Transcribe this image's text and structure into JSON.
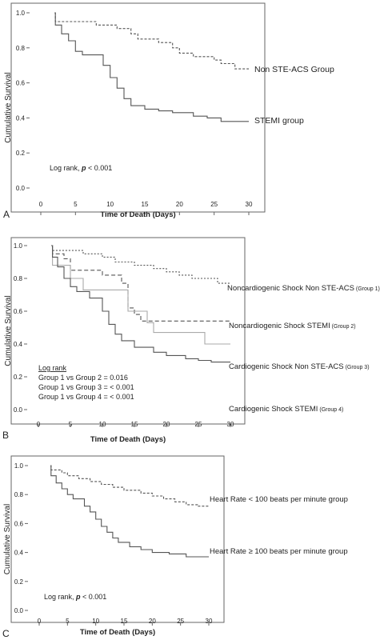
{
  "chart_data": [
    {
      "panel_label": "A",
      "type": "line",
      "step": true,
      "ylabel": "Cumulative Survival",
      "xlabel": "Time of Death (Days)",
      "xlim": [
        0,
        30
      ],
      "ylim": [
        0,
        1
      ],
      "x_ticks": [
        "0",
        "5",
        "10",
        "15",
        "20",
        "25",
        "30"
      ],
      "y_ticks": [
        "0.0",
        "0.2",
        "0.4",
        "0.6",
        "0.8",
        "1.0"
      ],
      "grid": false,
      "annotation_prefix": "Log rank,",
      "annotation_p": "p",
      "annotation_value": "< 0.001",
      "series": [
        {
          "name": "Non STE-ACS Group",
          "color": "#555555",
          "dash": "3,2",
          "points": [
            [
              2,
              1.0
            ],
            [
              2.1,
              0.95
            ],
            [
              7,
              0.95
            ],
            [
              8,
              0.93
            ],
            [
              11,
              0.91
            ],
            [
              13,
              0.88
            ],
            [
              14,
              0.85
            ],
            [
              17,
              0.83
            ],
            [
              19,
              0.8
            ],
            [
              20,
              0.77
            ],
            [
              22,
              0.75
            ],
            [
              25,
              0.73
            ],
            [
              26,
              0.71
            ],
            [
              28,
              0.68
            ],
            [
              30,
              0.68
            ]
          ]
        },
        {
          "name": "STEMI group",
          "color": "#555555",
          "dash": "",
          "points": [
            [
              2,
              1.0
            ],
            [
              2.1,
              0.93
            ],
            [
              3,
              0.88
            ],
            [
              4,
              0.84
            ],
            [
              5,
              0.78
            ],
            [
              6,
              0.76
            ],
            [
              9,
              0.7
            ],
            [
              10,
              0.63
            ],
            [
              11,
              0.57
            ],
            [
              12,
              0.51
            ],
            [
              13,
              0.47
            ],
            [
              15,
              0.45
            ],
            [
              17,
              0.44
            ],
            [
              19,
              0.43
            ],
            [
              22,
              0.41
            ],
            [
              24,
              0.4
            ],
            [
              26,
              0.38
            ],
            [
              30,
              0.38
            ]
          ]
        }
      ]
    },
    {
      "panel_label": "B",
      "type": "line",
      "step": true,
      "ylabel": "Cumulative Survival",
      "xlabel": "Time of Death (Days)",
      "xlim": [
        0,
        30
      ],
      "ylim": [
        0,
        1
      ],
      "x_ticks": [
        "0",
        "5",
        "10",
        "15",
        "20",
        "25",
        "30"
      ],
      "y_ticks": [
        "0.0",
        "0.2",
        "0.4",
        "0.6",
        "0.8",
        "1.0"
      ],
      "grid": false,
      "log_rank_title": "Log rank",
      "comparisons": [
        "Group 1 vs Group 2 = 0.016",
        "Group 1 vs Group 3 = < 0.001",
        "Group 1 vs Group 4 = < 0.001"
      ],
      "series": [
        {
          "name": "Noncardiogenic Shock Non STE-ACS",
          "group": "(Group 1)",
          "color": "#555555",
          "dash": "2,2",
          "points": [
            [
              2,
              1.0
            ],
            [
              2.2,
              0.97
            ],
            [
              6,
              0.97
            ],
            [
              7,
              0.95
            ],
            [
              10,
              0.93
            ],
            [
              12,
              0.9
            ],
            [
              15,
              0.88
            ],
            [
              18,
              0.86
            ],
            [
              20,
              0.84
            ],
            [
              22,
              0.82
            ],
            [
              24,
              0.8
            ],
            [
              28,
              0.77
            ],
            [
              30,
              0.77
            ]
          ]
        },
        {
          "name": "Noncardiogenic Shock STEMI",
          "group": "(Group 2)",
          "color": "#555555",
          "dash": "5,3",
          "points": [
            [
              2,
              1.0
            ],
            [
              2.2,
              0.95
            ],
            [
              4,
              0.92
            ],
            [
              5,
              0.85
            ],
            [
              9,
              0.85
            ],
            [
              10,
              0.82
            ],
            [
              13,
              0.77
            ],
            [
              14,
              0.62
            ],
            [
              15,
              0.58
            ],
            [
              16,
              0.54
            ],
            [
              30,
              0.54
            ]
          ]
        },
        {
          "name": "Cardiogenic Shock Non STE-ACS",
          "group": "(Group 3)",
          "color": "#aaaaaa",
          "dash": "",
          "points": [
            [
              2,
              1.0
            ],
            [
              2.2,
              0.88
            ],
            [
              5,
              0.8
            ],
            [
              7,
              0.73
            ],
            [
              13,
              0.73
            ],
            [
              14,
              0.6
            ],
            [
              17,
              0.53
            ],
            [
              18,
              0.47
            ],
            [
              25,
              0.47
            ],
            [
              26,
              0.4
            ],
            [
              30,
              0.4
            ]
          ]
        },
        {
          "name": "Cardiogenic Shock STEMI",
          "group": "(Group 4)",
          "color": "#555555",
          "dash": "",
          "points": [
            [
              2,
              1.0
            ],
            [
              2.2,
              0.93
            ],
            [
              3,
              0.87
            ],
            [
              4,
              0.8
            ],
            [
              5,
              0.75
            ],
            [
              6,
              0.72
            ],
            [
              8,
              0.68
            ],
            [
              10,
              0.6
            ],
            [
              11,
              0.52
            ],
            [
              12,
              0.46
            ],
            [
              13,
              0.42
            ],
            [
              15,
              0.38
            ],
            [
              18,
              0.35
            ],
            [
              20,
              0.33
            ],
            [
              23,
              0.31
            ],
            [
              25,
              0.3
            ],
            [
              27,
              0.29
            ],
            [
              30,
              0.29
            ]
          ]
        }
      ]
    },
    {
      "panel_label": "C",
      "type": "line",
      "step": true,
      "ylabel": "Cumulative Survival",
      "xlabel": "Time of Death (Days)",
      "xlim": [
        0,
        30
      ],
      "ylim": [
        0,
        1
      ],
      "x_ticks": [
        "0",
        "5",
        "10",
        "15",
        "20",
        "25",
        "30"
      ],
      "y_ticks": [
        "0.0",
        "0.2",
        "0.4",
        "0.6",
        "0.8",
        "1.0"
      ],
      "grid": false,
      "annotation_prefix": "Log rank,",
      "annotation_p": "p",
      "annotation_value": "< 0.001",
      "series": [
        {
          "name": "Heart Rate < 100 beats per minute  group",
          "color": "#555555",
          "dash": "3,2",
          "points": [
            [
              2,
              1.0
            ],
            [
              2.1,
              0.97
            ],
            [
              4,
              0.95
            ],
            [
              5,
              0.93
            ],
            [
              7,
              0.91
            ],
            [
              9,
              0.89
            ],
            [
              11,
              0.87
            ],
            [
              13,
              0.85
            ],
            [
              15,
              0.83
            ],
            [
              18,
              0.81
            ],
            [
              20,
              0.79
            ],
            [
              22,
              0.77
            ],
            [
              24,
              0.75
            ],
            [
              26,
              0.73
            ],
            [
              28,
              0.72
            ],
            [
              30,
              0.72
            ]
          ]
        },
        {
          "name": "Heart Rate ≥ 100 beats per minute group",
          "color": "#555555",
          "dash": "",
          "points": [
            [
              2,
              1.0
            ],
            [
              2.1,
              0.93
            ],
            [
              3,
              0.88
            ],
            [
              4,
              0.84
            ],
            [
              5,
              0.8
            ],
            [
              6,
              0.77
            ],
            [
              8,
              0.72
            ],
            [
              9,
              0.68
            ],
            [
              10,
              0.63
            ],
            [
              11,
              0.58
            ],
            [
              12,
              0.54
            ],
            [
              13,
              0.5
            ],
            [
              14,
              0.47
            ],
            [
              16,
              0.44
            ],
            [
              18,
              0.42
            ],
            [
              20,
              0.4
            ],
            [
              23,
              0.39
            ],
            [
              26,
              0.37
            ],
            [
              30,
              0.37
            ]
          ]
        }
      ]
    }
  ]
}
